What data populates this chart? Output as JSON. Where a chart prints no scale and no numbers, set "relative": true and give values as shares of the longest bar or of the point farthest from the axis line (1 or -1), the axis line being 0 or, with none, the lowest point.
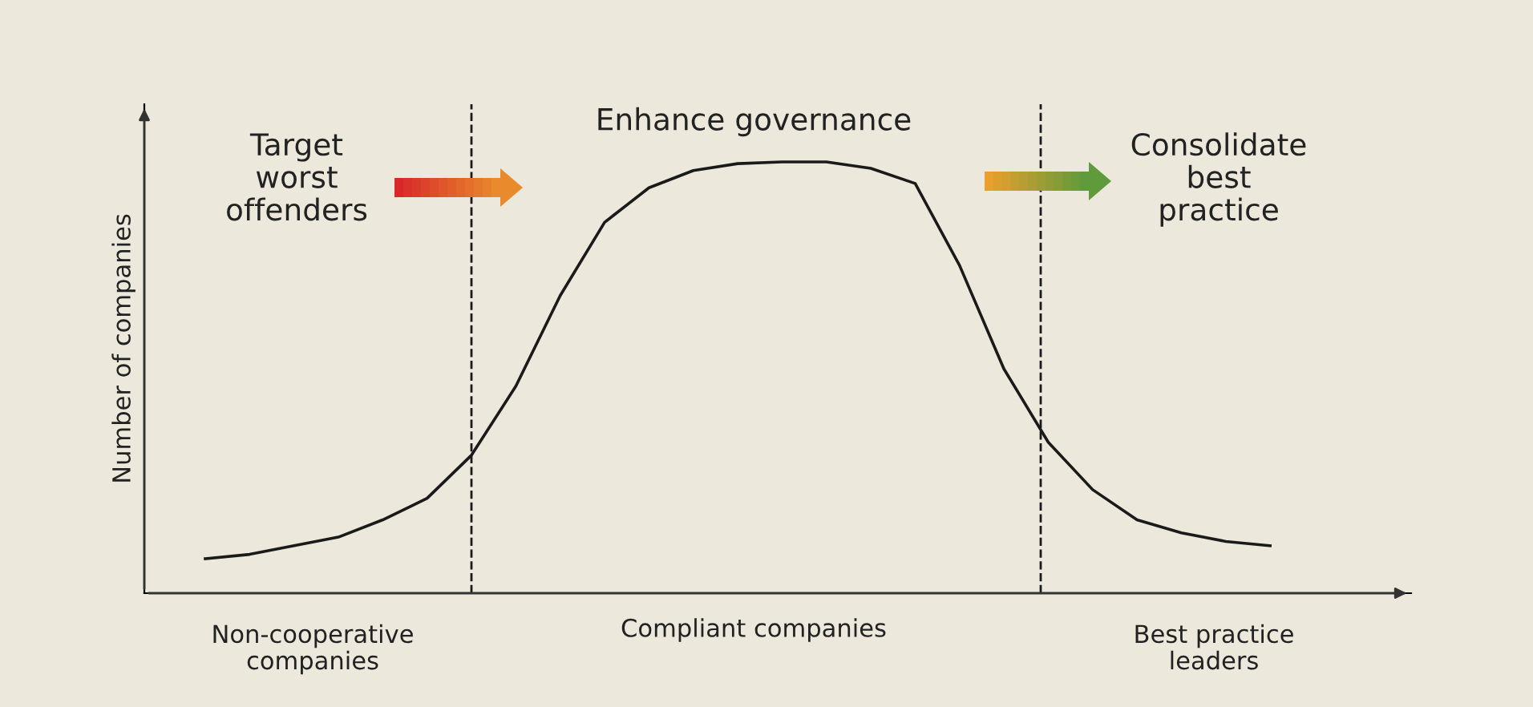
{
  "chart_data": {
    "type": "line",
    "relative": true,
    "ylabel": "Number of companies",
    "categories": [
      null,
      null,
      null,
      null,
      null,
      null,
      null,
      null,
      null,
      null,
      null,
      null,
      null,
      null,
      null,
      null,
      null,
      null,
      null,
      null,
      null,
      null,
      null,
      null,
      null
    ],
    "series": [
      {
        "color": "#1a1a1a",
        "values": [
          0.08,
          0.09,
          0.11,
          0.13,
          0.17,
          0.22,
          0.32,
          0.48,
          0.69,
          0.86,
          0.94,
          0.98,
          0.996,
          1.0,
          1.0,
          0.985,
          0.95,
          0.76,
          0.52,
          0.35,
          0.24,
          0.17,
          0.14,
          0.12,
          0.11
        ]
      }
    ],
    "annotations": [
      "Target\nworst\noffenders",
      "Enhance governance",
      "Consolidate\nbest\npractice",
      "Non-cooperative\ncompanies",
      "Compliant companies",
      "Best practice\nleaders"
    ],
    "marker": "none",
    "line_style": "solid"
  }
}
